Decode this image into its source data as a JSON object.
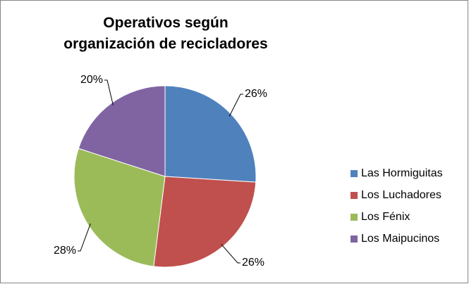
{
  "chart_data": {
    "type": "pie",
    "title": "Operativos según organización de recicladores",
    "categories": [
      "Las Hormiguitas",
      "Los Luchadores",
      "Los Fénix",
      "Los Maipucinos"
    ],
    "values": [
      26,
      26,
      28,
      20
    ],
    "value_labels": [
      "26%",
      "26%",
      "28%",
      "20%"
    ],
    "colors": [
      "#4f81bd",
      "#c0504d",
      "#9bbb59",
      "#8064a2"
    ],
    "legend": "right"
  }
}
